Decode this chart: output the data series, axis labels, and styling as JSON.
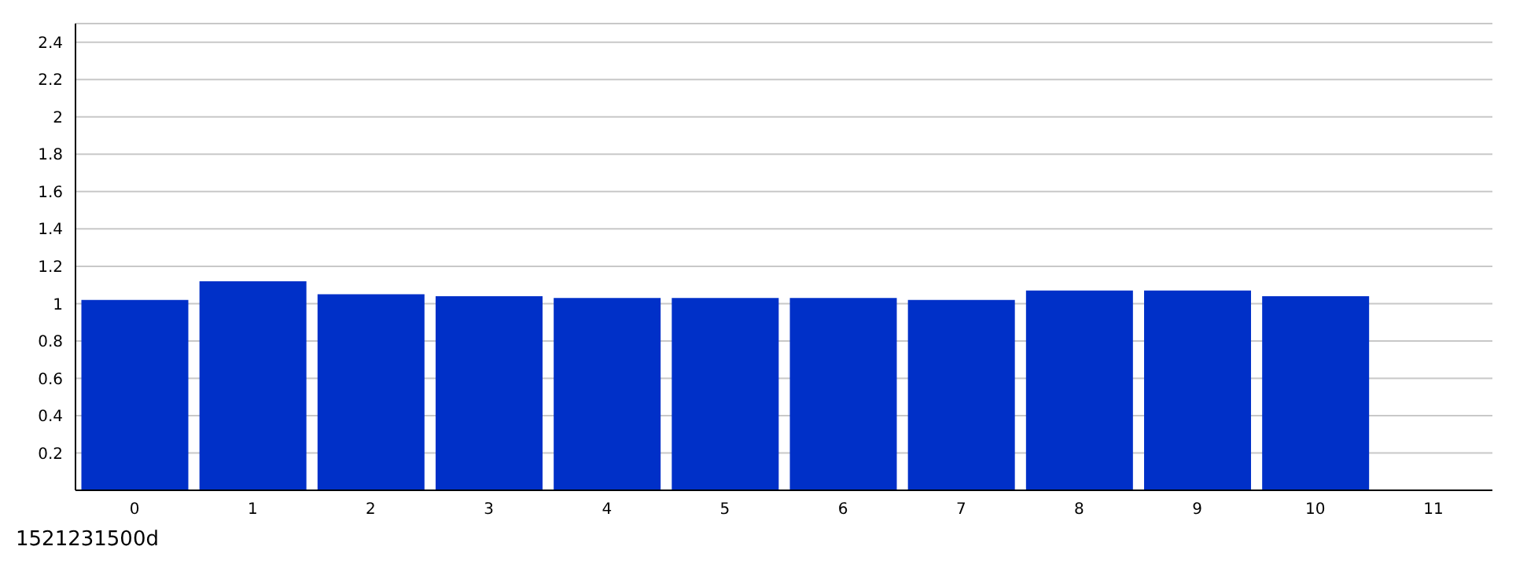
{
  "chart_data": {
    "type": "bar",
    "categories": [
      "0",
      "1",
      "2",
      "3",
      "4",
      "5",
      "6",
      "7",
      "8",
      "9",
      "10",
      "11"
    ],
    "values": [
      1.02,
      1.12,
      1.05,
      1.04,
      1.03,
      1.03,
      1.03,
      1.02,
      1.07,
      1.07,
      1.04,
      null
    ],
    "color": "#0030c8",
    "ylim": [
      0,
      2.5
    ],
    "yticks": [
      0.2,
      0.4,
      0.6,
      0.8,
      1,
      1.2,
      1.4,
      1.6,
      1.8,
      2,
      2.2,
      2.4
    ],
    "grid": "y",
    "legend": false,
    "annotations": [
      "1521231500d"
    ]
  }
}
